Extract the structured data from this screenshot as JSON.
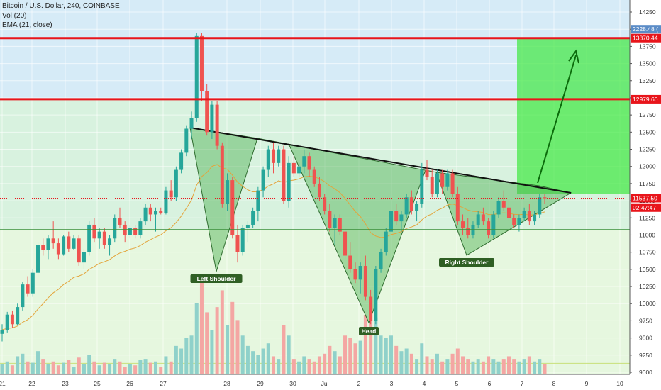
{
  "legend": {
    "title": "Bitcoin / U.S. Dollar, 240, COINBASE",
    "vol": "Vol (20)",
    "ema": "EMA (21, close)"
  },
  "colors": {
    "up": "#26a69a",
    "down": "#ef5350",
    "vol_up": "#8fd1ca",
    "vol_down": "#f4a6a3",
    "resistance": "#e8151b",
    "pattern_fill": "#4caf50",
    "target_box": "#3ee83e",
    "ema": "#e3a43b"
  },
  "chart_data": {
    "type": "candlestick",
    "title": "Bitcoin / U.S. Dollar, 240, COINBASE",
    "y_ticks": [
      9000,
      9250,
      9500,
      9750,
      10000,
      10250,
      10500,
      10750,
      11000,
      11250,
      11500,
      11750,
      12000,
      12250,
      12500,
      12750,
      13000,
      13250,
      13500,
      13750,
      14000,
      14250
    ],
    "ylim": [
      8800,
      14500
    ],
    "x_ticks": [
      {
        "label": "21",
        "x": 0
      },
      {
        "label": "22",
        "x": 1
      },
      {
        "label": "23",
        "x": 2
      },
      {
        "label": "25",
        "x": 3
      },
      {
        "label": "26",
        "x": 4
      },
      {
        "label": "27",
        "x": 5
      },
      {
        "label": "28",
        "x": 6
      },
      {
        "label": "29",
        "x": 7
      },
      {
        "label": "30",
        "x": 8
      },
      {
        "label": "Jul",
        "x": 9
      },
      {
        "label": "2",
        "x": 10
      },
      {
        "label": "3",
        "x": 11
      },
      {
        "label": "4",
        "x": 12
      },
      {
        "label": "5",
        "x": 13
      },
      {
        "label": "6",
        "x": 14
      },
      {
        "label": "7",
        "x": 15
      },
      {
        "label": "8",
        "x": 16
      },
      {
        "label": "9",
        "x": 17
      },
      {
        "label": "10",
        "x": 18
      }
    ],
    "price_tags": [
      {
        "label": "13870.44",
        "value": 13870.44,
        "color": "#e8151b"
      },
      {
        "label": "12979.60",
        "value": 12979.6,
        "color": "#e8151b"
      },
      {
        "label": "11537.50",
        "value": 11537.5,
        "color": "#e8151b"
      },
      {
        "label": "02:47:47",
        "value": 11400,
        "color": "#e8151b"
      },
      {
        "label": "2228.48 (",
        "value": 14000,
        "color": "#5b8cc7"
      }
    ],
    "levels": [
      {
        "name": "resistance-high",
        "value": 13870.44
      },
      {
        "name": "resistance-low",
        "value": 12979.6
      },
      {
        "name": "support",
        "value": 11080
      },
      {
        "name": "volume-band",
        "value": 9130
      }
    ],
    "candles": [
      [
        9560,
        9700,
        9450,
        9620
      ],
      [
        9620,
        9880,
        9580,
        9840
      ],
      [
        9840,
        9900,
        9650,
        9700
      ],
      [
        9700,
        10000,
        9680,
        9950
      ],
      [
        9950,
        10320,
        9900,
        10280
      ],
      [
        10280,
        10400,
        10100,
        10150
      ],
      [
        10150,
        10500,
        10100,
        10450
      ],
      [
        10450,
        10900,
        10400,
        10850
      ],
      [
        10850,
        10950,
        10700,
        10780
      ],
      [
        10780,
        11000,
        10650,
        10950
      ],
      [
        10950,
        11200,
        10800,
        10880
      ],
      [
        10880,
        10950,
        10650,
        10720
      ],
      [
        10720,
        11000,
        10700,
        10980
      ],
      [
        10980,
        11050,
        10750,
        10800
      ],
      [
        10800,
        11000,
        10780,
        10950
      ],
      [
        10950,
        11000,
        10550,
        10600
      ],
      [
        10600,
        10800,
        10500,
        10750
      ],
      [
        10750,
        11200,
        10700,
        11150
      ],
      [
        11150,
        11250,
        10900,
        10950
      ],
      [
        10950,
        11100,
        10800,
        11050
      ],
      [
        11050,
        11100,
        10800,
        10850
      ],
      [
        10850,
        11000,
        10700,
        10950
      ],
      [
        10950,
        11300,
        10900,
        11250
      ],
      [
        11250,
        11400,
        11100,
        11150
      ],
      [
        11150,
        11200,
        10900,
        11000
      ],
      [
        11000,
        11150,
        10950,
        11100
      ],
      [
        11100,
        11150,
        10950,
        11000
      ],
      [
        11000,
        11250,
        10950,
        11200
      ],
      [
        11200,
        11450,
        11150,
        11400
      ],
      [
        11400,
        11450,
        11200,
        11300
      ],
      [
        11300,
        11400,
        11050,
        11350
      ],
      [
        11350,
        11400,
        11300,
        11320
      ],
      [
        11320,
        11700,
        11300,
        11650
      ],
      [
        11650,
        11800,
        11500,
        11550
      ],
      [
        11550,
        12000,
        11500,
        11950
      ],
      [
        11950,
        12250,
        11900,
        12200
      ],
      [
        12200,
        12600,
        12150,
        12550
      ],
      [
        12550,
        12800,
        12400,
        12700
      ],
      [
        12700,
        13950,
        12650,
        13900
      ],
      [
        13900,
        13950,
        12950,
        13100
      ],
      [
        13100,
        13200,
        12450,
        12500
      ],
      [
        12500,
        12950,
        12400,
        12900
      ],
      [
        12900,
        12950,
        12250,
        12300
      ],
      [
        12300,
        12350,
        11400,
        11450
      ],
      [
        11450,
        11900,
        11350,
        11800
      ],
      [
        11800,
        11850,
        10950,
        11000
      ],
      [
        11000,
        11150,
        10600,
        10750
      ],
      [
        10750,
        11150,
        10700,
        11100
      ],
      [
        11100,
        11200,
        10900,
        11150
      ],
      [
        11150,
        11400,
        11100,
        11350
      ],
      [
        11350,
        11700,
        11200,
        11650
      ],
      [
        11650,
        12000,
        11550,
        11950
      ],
      [
        11950,
        12300,
        11850,
        12250
      ],
      [
        12250,
        12350,
        11900,
        12050
      ],
      [
        12050,
        12300,
        12000,
        12250
      ],
      [
        12250,
        12300,
        11450,
        11500
      ],
      [
        11500,
        12150,
        11400,
        12050
      ],
      [
        12050,
        12150,
        11850,
        11900
      ],
      [
        11900,
        12050,
        11850,
        12000
      ],
      [
        12000,
        12250,
        11900,
        12150
      ],
      [
        12150,
        12200,
        11850,
        11950
      ],
      [
        11950,
        12000,
        11700,
        11750
      ],
      [
        11750,
        11850,
        11500,
        11550
      ],
      [
        11550,
        11600,
        11300,
        11350
      ],
      [
        11350,
        11450,
        11050,
        11100
      ],
      [
        11100,
        11300,
        10850,
        11250
      ],
      [
        11250,
        11300,
        11000,
        11050
      ],
      [
        11050,
        11100,
        10650,
        10700
      ],
      [
        10700,
        10900,
        10450,
        10500
      ],
      [
        10500,
        10600,
        10300,
        10350
      ],
      [
        10350,
        10600,
        10150,
        10550
      ],
      [
        10550,
        10700,
        10050,
        10100
      ],
      [
        10100,
        10200,
        9700,
        9750
      ],
      [
        9750,
        10550,
        9700,
        10500
      ],
      [
        10500,
        10800,
        10450,
        10750
      ],
      [
        10750,
        11100,
        10700,
        11050
      ],
      [
        11050,
        11400,
        11000,
        11350
      ],
      [
        11350,
        11450,
        11150,
        11200
      ],
      [
        11200,
        11350,
        11050,
        11300
      ],
      [
        11300,
        11600,
        11250,
        11550
      ],
      [
        11550,
        11650,
        11300,
        11350
      ],
      [
        11350,
        11500,
        11200,
        11450
      ],
      [
        11450,
        12050,
        11400,
        11950
      ],
      [
        11950,
        12100,
        11800,
        11850
      ],
      [
        11850,
        11950,
        11550,
        11600
      ],
      [
        11600,
        11950,
        11550,
        11900
      ],
      [
        11900,
        11950,
        11600,
        11700
      ],
      [
        11700,
        11950,
        11650,
        11900
      ],
      [
        11900,
        11950,
        11550,
        11600
      ],
      [
        11600,
        11700,
        11150,
        11200
      ],
      [
        11200,
        11300,
        11000,
        11100
      ],
      [
        11100,
        11250,
        10950,
        11000
      ],
      [
        11000,
        11200,
        10950,
        11150
      ],
      [
        11150,
        11350,
        11100,
        11300
      ],
      [
        11300,
        11400,
        11150,
        11200
      ],
      [
        11200,
        11250,
        10950,
        11000
      ],
      [
        11000,
        11350,
        10950,
        11300
      ],
      [
        11300,
        11550,
        11250,
        11500
      ],
      [
        11500,
        11650,
        11350,
        11400
      ],
      [
        11400,
        11550,
        11200,
        11250
      ],
      [
        11250,
        11300,
        11100,
        11150
      ],
      [
        11150,
        11300,
        11050,
        11250
      ],
      [
        11250,
        11400,
        11200,
        11350
      ],
      [
        11350,
        11450,
        11150,
        11200
      ],
      [
        11200,
        11350,
        11150,
        11300
      ],
      [
        11300,
        11600,
        11250,
        11550
      ],
      [
        11550,
        11600,
        11450,
        11537
      ]
    ],
    "volumes": [
      0.08,
      0.1,
      0.07,
      0.14,
      0.16,
      0.1,
      0.09,
      0.18,
      0.12,
      0.08,
      0.1,
      0.07,
      0.09,
      0.11,
      0.06,
      0.13,
      0.08,
      0.15,
      0.1,
      0.07,
      0.09,
      0.08,
      0.12,
      0.1,
      0.06,
      0.08,
      0.07,
      0.11,
      0.12,
      0.09,
      0.1,
      0.06,
      0.14,
      0.1,
      0.22,
      0.2,
      0.28,
      0.3,
      0.55,
      0.74,
      0.48,
      0.34,
      0.52,
      0.65,
      0.38,
      0.56,
      0.42,
      0.3,
      0.22,
      0.18,
      0.15,
      0.2,
      0.24,
      0.14,
      0.12,
      0.38,
      0.3,
      0.12,
      0.1,
      0.14,
      0.12,
      0.1,
      0.14,
      0.16,
      0.22,
      0.18,
      0.14,
      0.3,
      0.28,
      0.24,
      0.26,
      0.46,
      0.6,
      0.44,
      0.3,
      0.28,
      0.3,
      0.22,
      0.18,
      0.2,
      0.16,
      0.12,
      0.24,
      0.14,
      0.12,
      0.16,
      0.1,
      0.12,
      0.16,
      0.2,
      0.14,
      0.12,
      0.1,
      0.12,
      0.1,
      0.14,
      0.12,
      0.1,
      0.12,
      0.14,
      0.12,
      0.1,
      0.12,
      0.14,
      0.1,
      0.12,
      0.08
    ],
    "pattern_labels": [
      {
        "text": "Left Shoulder"
      },
      {
        "text": "Head"
      },
      {
        "text": "Right Shoulder"
      }
    ]
  }
}
